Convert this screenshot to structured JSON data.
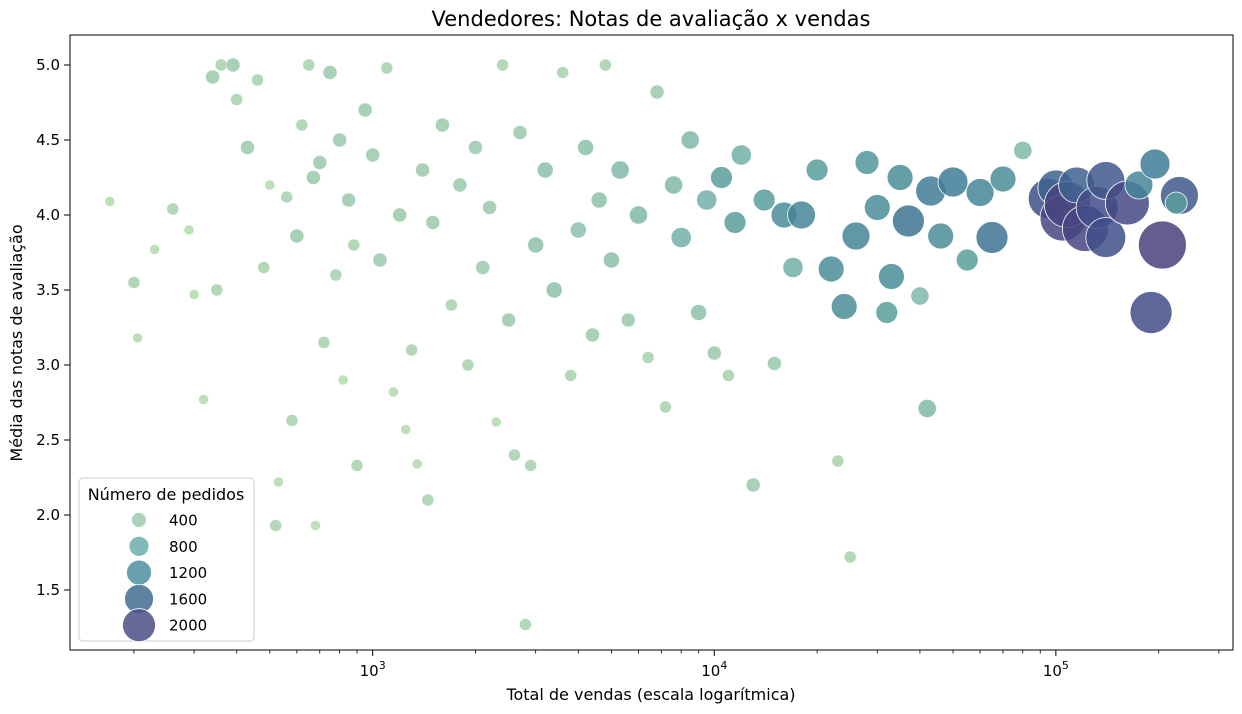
{
  "chart_data": {
    "type": "scatter",
    "title": "Vendedores: Notas de avaliação x vendas",
    "xlabel": "Total de vendas (escala logarítmica)",
    "ylabel": "Média das notas de avaliação",
    "x_scale": "log",
    "xlim": [
      130,
      330000
    ],
    "ylim": [
      1.1,
      5.2
    ],
    "x_ticks": [
      {
        "value": 1000,
        "base": "10",
        "exp": "3"
      },
      {
        "value": 10000,
        "base": "10",
        "exp": "4"
      },
      {
        "value": 100000,
        "base": "10",
        "exp": "5"
      }
    ],
    "y_ticks": [
      "1.5",
      "2.0",
      "2.5",
      "3.0",
      "3.5",
      "4.0",
      "4.5",
      "5.0"
    ],
    "grid": false,
    "legend": {
      "title": "Número de pedidos",
      "placement": "lower-left",
      "entries": [
        {
          "label": "400",
          "value": 400
        },
        {
          "label": "800",
          "value": 800
        },
        {
          "label": "1200",
          "value": 1200
        },
        {
          "label": "1600",
          "value": 1600
        },
        {
          "label": "2000",
          "value": 2000
        }
      ]
    },
    "color_scale": [
      "#a8d5a0",
      "#5fa59e",
      "#3e7d96",
      "#3f4f8a",
      "#4b3f7a"
    ],
    "points": [
      [
        170,
        4.09,
        10
      ],
      [
        200,
        3.55,
        12
      ],
      [
        205,
        3.18,
        10
      ],
      [
        230,
        3.77,
        10
      ],
      [
        260,
        4.04,
        12
      ],
      [
        290,
        3.9,
        10
      ],
      [
        300,
        3.47,
        10
      ],
      [
        320,
        2.77,
        10
      ],
      [
        340,
        4.92,
        14
      ],
      [
        350,
        3.5,
        12
      ],
      [
        360,
        5.0,
        12
      ],
      [
        390,
        5.0,
        14
      ],
      [
        400,
        4.77,
        12
      ],
      [
        430,
        4.45,
        14
      ],
      [
        460,
        4.9,
        12
      ],
      [
        480,
        3.65,
        12
      ],
      [
        500,
        4.2,
        10
      ],
      [
        520,
        1.93,
        12
      ],
      [
        530,
        2.22,
        10
      ],
      [
        560,
        4.12,
        12
      ],
      [
        580,
        2.63,
        12
      ],
      [
        600,
        3.86,
        14
      ],
      [
        620,
        4.6,
        12
      ],
      [
        650,
        5.0,
        12
      ],
      [
        670,
        4.25,
        14
      ],
      [
        680,
        1.93,
        10
      ],
      [
        700,
        4.35,
        14
      ],
      [
        720,
        3.15,
        12
      ],
      [
        750,
        4.95,
        14
      ],
      [
        780,
        3.6,
        12
      ],
      [
        800,
        4.5,
        14
      ],
      [
        820,
        2.9,
        10
      ],
      [
        850,
        4.1,
        14
      ],
      [
        880,
        3.8,
        12
      ],
      [
        900,
        2.33,
        12
      ],
      [
        950,
        4.7,
        14
      ],
      [
        1000,
        4.4,
        14
      ],
      [
        1050,
        3.7,
        14
      ],
      [
        1100,
        4.98,
        12
      ],
      [
        1150,
        2.82,
        10
      ],
      [
        1200,
        4.0,
        14
      ],
      [
        1250,
        2.57,
        10
      ],
      [
        1300,
        3.1,
        12
      ],
      [
        1350,
        2.34,
        10
      ],
      [
        1400,
        4.3,
        14
      ],
      [
        1450,
        2.1,
        12
      ],
      [
        1500,
        3.95,
        14
      ],
      [
        1600,
        4.6,
        14
      ],
      [
        1700,
        3.4,
        12
      ],
      [
        1800,
        4.2,
        14
      ],
      [
        1900,
        3.0,
        12
      ],
      [
        2000,
        4.45,
        14
      ],
      [
        2100,
        3.65,
        14
      ],
      [
        2200,
        4.05,
        14
      ],
      [
        2300,
        2.62,
        10
      ],
      [
        2400,
        5.0,
        12
      ],
      [
        2500,
        3.3,
        14
      ],
      [
        2600,
        2.4,
        12
      ],
      [
        2700,
        4.55,
        14
      ],
      [
        2800,
        1.27,
        12
      ],
      [
        2900,
        2.33,
        12
      ],
      [
        3000,
        3.8,
        16
      ],
      [
        3200,
        4.3,
        16
      ],
      [
        3400,
        3.5,
        16
      ],
      [
        3600,
        4.95,
        12
      ],
      [
        3800,
        2.93,
        12
      ],
      [
        4000,
        3.9,
        16
      ],
      [
        4200,
        4.45,
        16
      ],
      [
        4400,
        3.2,
        14
      ],
      [
        4600,
        4.1,
        16
      ],
      [
        4800,
        5.0,
        12
      ],
      [
        5000,
        3.7,
        16
      ],
      [
        5300,
        4.3,
        18
      ],
      [
        5600,
        3.3,
        14
      ],
      [
        6000,
        4.0,
        18
      ],
      [
        6400,
        3.05,
        12
      ],
      [
        6800,
        4.82,
        14
      ],
      [
        7200,
        2.72,
        12
      ],
      [
        7600,
        4.2,
        18
      ],
      [
        8000,
        3.85,
        20
      ],
      [
        8500,
        4.5,
        18
      ],
      [
        9000,
        3.35,
        16
      ],
      [
        9500,
        4.1,
        20
      ],
      [
        10000,
        3.08,
        14
      ],
      [
        10500,
        4.25,
        22
      ],
      [
        11000,
        2.93,
        12
      ],
      [
        11500,
        3.95,
        22
      ],
      [
        12000,
        4.4,
        20
      ],
      [
        13000,
        2.2,
        14
      ],
      [
        14000,
        4.1,
        22
      ],
      [
        15000,
        3.01,
        14
      ],
      [
        16000,
        4.0,
        26
      ],
      [
        17000,
        3.65,
        20
      ],
      [
        18000,
        4.0,
        28
      ],
      [
        20000,
        4.3,
        22
      ],
      [
        22000,
        3.64,
        26
      ],
      [
        23000,
        2.36,
        12
      ],
      [
        24000,
        3.39,
        26
      ],
      [
        25000,
        1.72,
        12
      ],
      [
        26000,
        3.86,
        28
      ],
      [
        28000,
        4.35,
        24
      ],
      [
        30000,
        4.05,
        26
      ],
      [
        33000,
        3.59,
        26
      ],
      [
        32000,
        3.35,
        22
      ],
      [
        35000,
        4.25,
        26
      ],
      [
        37000,
        3.96,
        32
      ],
      [
        40000,
        3.46,
        18
      ],
      [
        42000,
        2.71,
        18
      ],
      [
        43000,
        4.16,
        30
      ],
      [
        46000,
        3.86,
        26
      ],
      [
        50000,
        4.22,
        30
      ],
      [
        55000,
        3.7,
        22
      ],
      [
        60000,
        4.15,
        28
      ],
      [
        65000,
        3.85,
        32
      ],
      [
        70000,
        4.24,
        26
      ],
      [
        80000,
        4.43,
        18
      ],
      [
        95000,
        4.11,
        40
      ],
      [
        100000,
        4.18,
        36
      ],
      [
        105000,
        3.98,
        46
      ],
      [
        108000,
        4.07,
        46
      ],
      [
        115000,
        4.2,
        36
      ],
      [
        122000,
        3.91,
        46
      ],
      [
        132000,
        4.05,
        42
      ],
      [
        140000,
        4.23,
        38
      ],
      [
        140000,
        3.85,
        40
      ],
      [
        162000,
        4.08,
        44
      ],
      [
        175000,
        4.2,
        28
      ],
      [
        190000,
        3.35,
        42
      ],
      [
        195000,
        4.34,
        30
      ],
      [
        205000,
        3.8,
        48
      ],
      [
        230000,
        4.13,
        38
      ],
      [
        225000,
        4.08,
        22
      ]
    ]
  }
}
